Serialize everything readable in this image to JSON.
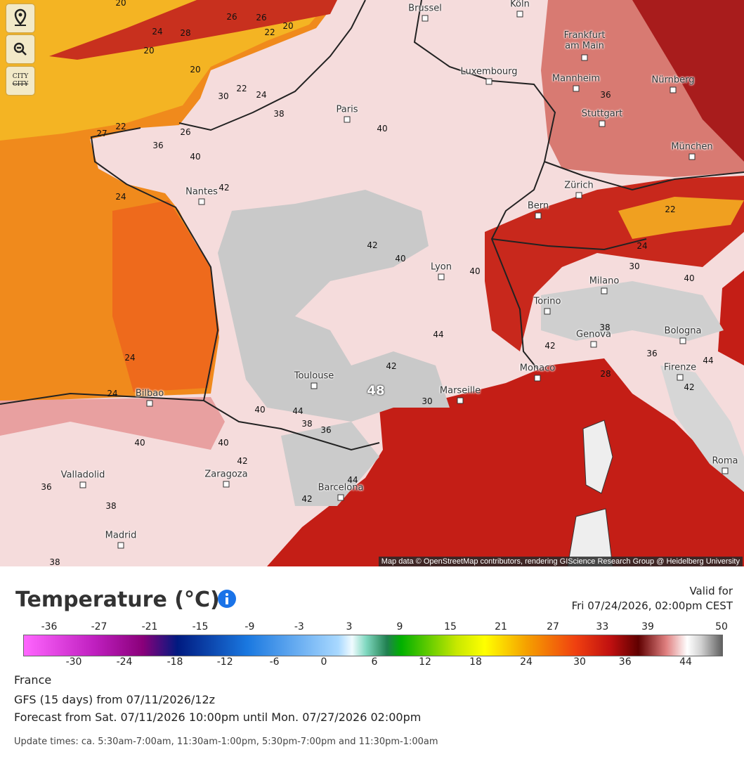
{
  "controls": {
    "city_button": {
      "label": "CITY",
      "struck_label": "CITY"
    }
  },
  "map": {
    "cities": [
      "Brussel",
      "Köln",
      "Frankfurt am Main",
      "Luxembourg",
      "Mannheim",
      "Nürnberg",
      "Paris",
      "Stuttgart",
      "München",
      "Nantes",
      "Zürich",
      "Bern",
      "Lyon",
      "Milano",
      "Torino",
      "Genova",
      "Bologna",
      "Monaco",
      "Firenze",
      "Toulouse",
      "Marseille",
      "Bilbao",
      "Roma",
      "Valladolid",
      "Zaragoza",
      "Barcelona",
      "Madrid"
    ],
    "contour_labels": [
      20,
      24,
      28,
      26,
      26,
      22,
      20,
      20,
      20,
      22,
      30,
      24,
      38,
      22,
      27,
      26,
      36,
      40,
      42,
      24,
      40,
      36,
      42,
      40,
      40,
      22,
      24,
      30,
      40,
      44,
      42,
      38,
      36,
      42,
      48,
      44,
      42,
      28,
      24,
      24,
      30,
      40,
      44,
      38,
      36,
      40,
      40,
      42,
      36,
      38,
      42,
      44,
      38
    ],
    "attribution": "Map data © OpenStreetMap contributors, rendering GIScience Research Group @ Heidelberg University"
  },
  "panel": {
    "title": "Temperature (°C)",
    "valid_label": "Valid for",
    "valid_time": "Fri 07/24/2026, 02:00pm CEST",
    "legend": {
      "top_ticks": [
        -36,
        -27,
        -21,
        -15,
        -9,
        -3,
        3,
        9,
        15,
        21,
        27,
        33,
        39,
        50
      ],
      "bottom_ticks": [
        -30,
        -24,
        -18,
        -12,
        -6,
        0,
        6,
        12,
        18,
        24,
        30,
        36,
        44
      ]
    },
    "region": "France",
    "model": "GFS (15 days) from 07/11/2026/12z",
    "forecast_range": "Forecast from Sat. 07/11/2026 10:00pm until Mon. 07/27/2026 02:00pm",
    "update_times": "Update times: ca. 5:30am-7:00am, 11:30am-1:00pm, 5:30pm-7:00pm and 11:30pm-1:00am"
  }
}
